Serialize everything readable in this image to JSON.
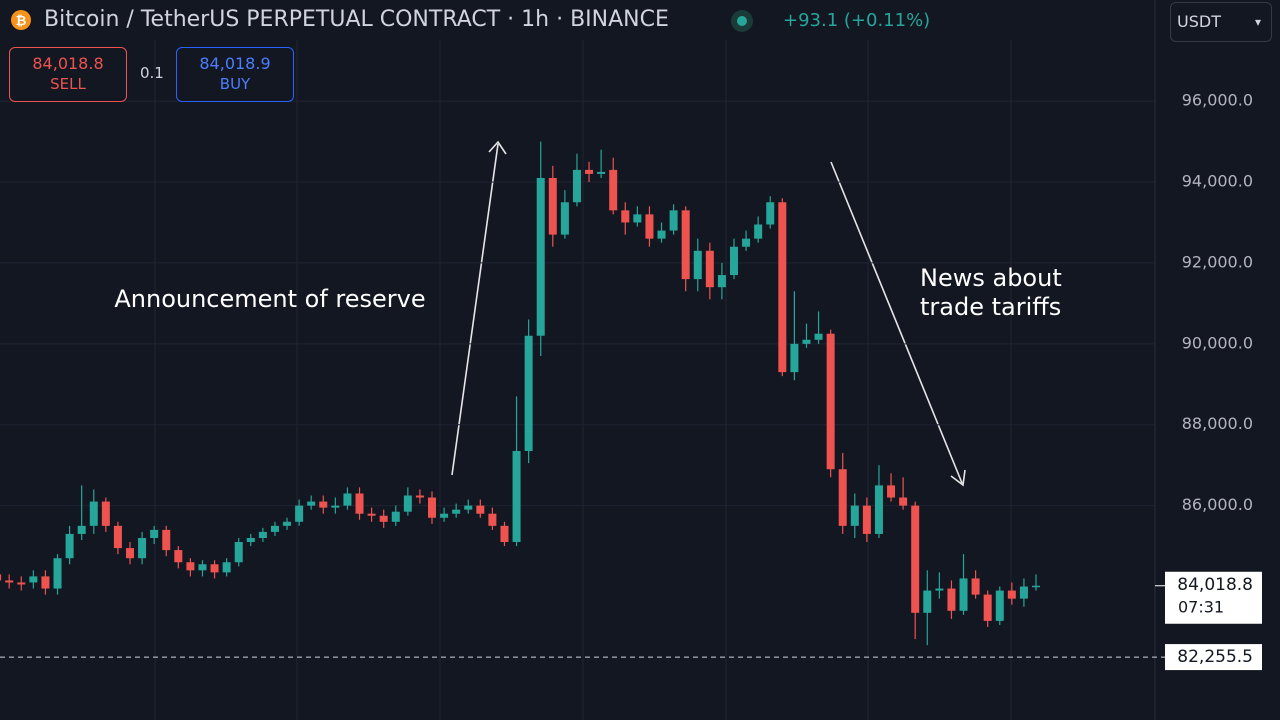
{
  "header": {
    "symbol": "Bitcoin / TetherUS PERPETUAL CONTRACT · 1h · BINANCE",
    "change": "+93.1 (+0.11%)",
    "sell_price": "84,018.8",
    "sell_label": "SELL",
    "spread": "0.1",
    "buy_price": "84,018.9",
    "buy_label": "BUY",
    "currency": "USDT"
  },
  "chart_data": {
    "type": "candlestick",
    "annotations": [
      [
        "Announcement of reserve"
      ],
      [
        "News about",
        "trade tariffs"
      ]
    ],
    "series": [
      {
        "up_color": "#26a69a",
        "down_color": "#ef5350",
        "open": [
          84300,
          84150,
          84100,
          84100,
          84250,
          83950,
          84700,
          85300,
          85500,
          86100,
          85500,
          84950,
          84700,
          85200,
          85400,
          84900,
          84600,
          84400,
          84550,
          84350,
          84600,
          85100,
          85200,
          85350,
          85500,
          85600,
          86000,
          86100,
          85950,
          86000,
          86300,
          85800,
          85750,
          85600,
          85850,
          86250,
          86200,
          85700,
          85800,
          85900,
          86000,
          85800,
          85500,
          85100,
          87350,
          90200,
          94100,
          92700,
          93500,
          94300,
          94200,
          94300,
          93300,
          93000,
          93200,
          92600,
          92800,
          93300,
          91600,
          92300,
          91400,
          91700,
          92400,
          92600,
          92950,
          93500,
          89300,
          90000,
          90100,
          90250,
          86900,
          85500,
          86000,
          85300,
          86500,
          86200,
          86000,
          83350,
          83900,
          83950,
          83400,
          84200,
          83800,
          83150,
          83900,
          83700,
          84000
        ],
        "high": [
          84500,
          84300,
          84250,
          84400,
          84400,
          84800,
          85500,
          86500,
          86400,
          86200,
          85600,
          85100,
          85350,
          85500,
          85500,
          85000,
          84700,
          84650,
          84650,
          84700,
          85200,
          85300,
          85450,
          85600,
          85700,
          86150,
          86250,
          86250,
          86200,
          86450,
          86450,
          85950,
          85900,
          86000,
          86450,
          86400,
          86350,
          85950,
          86050,
          86150,
          86150,
          85950,
          85600,
          88700,
          90600,
          95000,
          94400,
          93800,
          94700,
          94500,
          94800,
          94600,
          93500,
          93400,
          93400,
          93000,
          93450,
          93400,
          92600,
          92500,
          92000,
          92600,
          92800,
          93150,
          93650,
          93600,
          91300,
          90500,
          90800,
          90350,
          87300,
          86300,
          86200,
          87000,
          86800,
          86700,
          86100,
          84400,
          84350,
          84150,
          84800,
          84400,
          83900,
          84000,
          84100,
          84200,
          84300
        ],
        "low": [
          83750,
          83950,
          83900,
          83950,
          83800,
          83800,
          84550,
          85150,
          85300,
          85350,
          84800,
          84550,
          84550,
          85050,
          84750,
          84450,
          84250,
          84250,
          84200,
          84250,
          84500,
          85000,
          85100,
          85250,
          85400,
          85500,
          85900,
          85800,
          85800,
          85900,
          85650,
          85600,
          85450,
          85500,
          85750,
          86050,
          85550,
          85600,
          85700,
          85800,
          85700,
          85400,
          85000,
          85000,
          87050,
          89700,
          92400,
          92600,
          93400,
          94000,
          94100,
          93200,
          92700,
          92900,
          92400,
          92500,
          92700,
          91300,
          91300,
          91100,
          91100,
          91600,
          92300,
          92500,
          92850,
          89200,
          89100,
          89900,
          90000,
          86700,
          85300,
          85200,
          85100,
          85200,
          86100,
          85900,
          82700,
          82550,
          83700,
          83200,
          83300,
          83700,
          83000,
          83050,
          83550,
          83500,
          83900
        ],
        "close": [
          84150,
          84100,
          84050,
          84250,
          83950,
          84700,
          85300,
          85500,
          86100,
          85500,
          84950,
          84700,
          85200,
          85400,
          84900,
          84600,
          84400,
          84550,
          84350,
          84600,
          85100,
          85200,
          85350,
          85500,
          85600,
          86000,
          86100,
          85950,
          86000,
          86300,
          85800,
          85750,
          85600,
          85850,
          86250,
          86200,
          85700,
          85800,
          85900,
          86000,
          85800,
          85500,
          85100,
          87350,
          90200,
          94100,
          92700,
          93500,
          94300,
          94200,
          94250,
          93300,
          93000,
          93200,
          92600,
          92800,
          93300,
          91600,
          92300,
          91400,
          91700,
          92400,
          92600,
          92950,
          93500,
          89300,
          90000,
          90100,
          90250,
          86900,
          85500,
          86000,
          85300,
          86500,
          86200,
          86000,
          83350,
          83900,
          83950,
          83400,
          84200,
          83800,
          83150,
          83900,
          83700,
          84000,
          84018.8
        ]
      }
    ],
    "ylim": [
      80700,
      98500
    ],
    "yticks": [
      {
        "value": 86000,
        "label": "86,000.0"
      },
      {
        "value": 88000,
        "label": "88,000.0"
      },
      {
        "value": 90000,
        "label": "90,000.0"
      },
      {
        "value": 92000,
        "label": "92,000.0"
      },
      {
        "value": 94000,
        "label": "94,000.0"
      },
      {
        "value": 96000,
        "label": "96,000.0"
      }
    ],
    "last_price": {
      "value": 84018.8,
      "label": "84,018.8",
      "countdown": "07:31"
    },
    "alert_line": {
      "value": 82255.5,
      "label": "82,255.5"
    },
    "grid": true
  }
}
